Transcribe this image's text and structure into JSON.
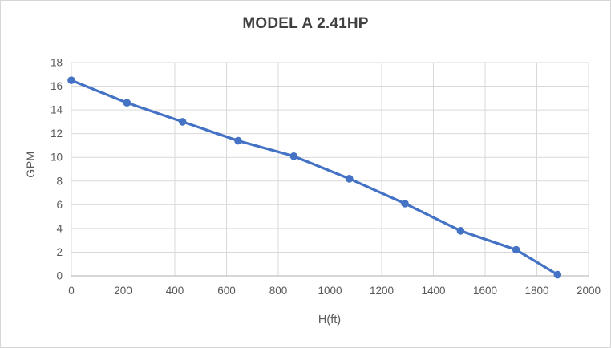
{
  "chart_data": {
    "type": "line",
    "title": "MODEL A 2.41HP",
    "xlabel": "H(ft)",
    "ylabel": "GPM",
    "x": [
      0,
      215,
      430,
      645,
      860,
      1075,
      1290,
      1505,
      1720,
      1880
    ],
    "y": [
      16.5,
      14.6,
      13.0,
      11.4,
      10.1,
      8.2,
      6.1,
      3.8,
      2.2,
      0.1
    ],
    "xlim": [
      0,
      2000
    ],
    "ylim": [
      0,
      18
    ],
    "x_ticks": [
      0,
      200,
      400,
      600,
      800,
      1000,
      1200,
      1400,
      1600,
      1800,
      2000
    ],
    "y_ticks": [
      0,
      2,
      4,
      6,
      8,
      10,
      12,
      14,
      16,
      18
    ],
    "grid": true,
    "legend": "none",
    "marker": "circle",
    "colors": {
      "line": "#4472C4",
      "marker": "#4472C4",
      "gridline": "#D9D9D9",
      "axis_line": "#BFBFBF",
      "tick_text": "#595959",
      "title_text": "#404040",
      "axis_title_text": "#595959",
      "background": "#FFFFFF",
      "border": "#D6D6D6"
    }
  }
}
